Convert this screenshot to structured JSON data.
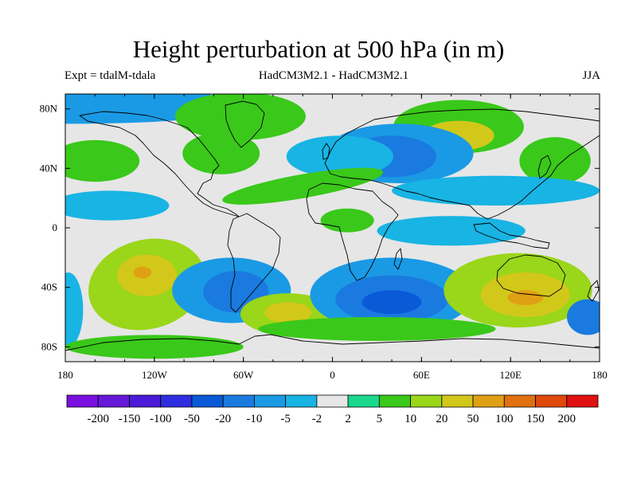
{
  "title": "Height perturbation at 500 hPa (in m)",
  "experiment": "Expt = tdalM-tdala",
  "models": "HadCM3M2.1 - HadCM3M2.1",
  "season": "JJA",
  "axes": {
    "x_ticks": [
      "180",
      "120W",
      "60W",
      "0",
      "60E",
      "120E",
      "180"
    ],
    "y_ticks": [
      "80N",
      "40N",
      "0",
      "40S",
      "80S"
    ]
  },
  "colorbar": {
    "labels": [
      "-200",
      "-150",
      "-100",
      "-50",
      "-20",
      "-10",
      "-5",
      "-2",
      "2",
      "5",
      "10",
      "20",
      "50",
      "100",
      "150",
      "200"
    ],
    "colors": [
      "#7a10e0",
      "#6418d8",
      "#4a1ad8",
      "#2e2ee0",
      "#0a5ad8",
      "#1a7ae0",
      "#1a9ae4",
      "#18b4e4",
      "#e6e6e6",
      "#1ad88c",
      "#3ac81a",
      "#9ad61a",
      "#d2c81a",
      "#e0a014",
      "#e07010",
      "#e0480c",
      "#e01010"
    ]
  },
  "map": {
    "background_color": "#e6e6e6",
    "features": [
      {
        "name": "arctic-band",
        "level": "-5",
        "lon": -175,
        "lat": 82,
        "w": 120,
        "h": 12,
        "rot": 0
      },
      {
        "name": "greenland-high",
        "level": "5",
        "lon": -62,
        "lat": 75,
        "w": 44,
        "h": 16,
        "rot": 0
      },
      {
        "name": "siberia-high",
        "level": "5",
        "lon": 85,
        "lat": 68,
        "w": 44,
        "h": 18,
        "rot": 0
      },
      {
        "name": "siberia-core",
        "level": "20",
        "lon": 85,
        "lat": 62,
        "w": 24,
        "h": 10,
        "rot": 0
      },
      {
        "name": "eurasia-low",
        "level": "-5",
        "lon": 45,
        "lat": 50,
        "w": 50,
        "h": 20,
        "rot": 0
      },
      {
        "name": "eurasia-low-core",
        "level": "-10",
        "lon": 40,
        "lat": 48,
        "w": 30,
        "h": 14,
        "rot": 0
      },
      {
        "name": "europe-low",
        "level": "-2",
        "lon": 5,
        "lat": 48,
        "w": 36,
        "h": 14,
        "rot": 0
      },
      {
        "name": "pacific-nw-high",
        "level": "5",
        "lon": -160,
        "lat": 45,
        "w": 30,
        "h": 14,
        "rot": 0
      },
      {
        "name": "north-america-high",
        "level": "5",
        "lon": -75,
        "lat": 50,
        "w": 26,
        "h": 14,
        "rot": 0
      },
      {
        "name": "east-asia-high",
        "level": "5",
        "lon": 150,
        "lat": 45,
        "w": 24,
        "h": 16,
        "rot": 0
      },
      {
        "name": "asia-belt-low",
        "level": "-2",
        "lon": 110,
        "lat": 25,
        "w": 70,
        "h": 10,
        "rot": 0
      },
      {
        "name": "atlantic-green",
        "level": "5",
        "lon": -20,
        "lat": 28,
        "w": 55,
        "h": 8,
        "rot": -10
      },
      {
        "name": "tropical-pacific",
        "level": "-2",
        "lon": -150,
        "lat": 15,
        "w": 40,
        "h": 10,
        "rot": 0
      },
      {
        "name": "eq-africa",
        "level": "5",
        "lon": 10,
        "lat": 5,
        "w": 18,
        "h": 8,
        "rot": 0
      },
      {
        "name": "indian-eq",
        "level": "-2",
        "lon": 80,
        "lat": -2,
        "w": 50,
        "h": 10,
        "rot": 0
      },
      {
        "name": "south-pacific-high",
        "level": "10",
        "lon": -125,
        "lat": -38,
        "w": 40,
        "h": 30,
        "rot": -15
      },
      {
        "name": "south-pacific-core",
        "level": "20",
        "lon": -125,
        "lat": -32,
        "w": 20,
        "h": 14,
        "rot": 0
      },
      {
        "name": "south-pacific-peak",
        "level": "50",
        "lon": -128,
        "lat": -30,
        "w": 6,
        "h": 4,
        "rot": 0
      },
      {
        "name": "far-east-pacific-low",
        "level": "-2",
        "lon": -178,
        "lat": -55,
        "w": 10,
        "h": 25,
        "rot": 0
      },
      {
        "name": "sa-low",
        "level": "-5",
        "lon": -68,
        "lat": -42,
        "w": 40,
        "h": 22,
        "rot": 0
      },
      {
        "name": "sa-low-core",
        "level": "-10",
        "lon": -65,
        "lat": -43,
        "w": 22,
        "h": 14,
        "rot": 0
      },
      {
        "name": "south-atlantic-high",
        "level": "10",
        "lon": -30,
        "lat": -58,
        "w": 32,
        "h": 14,
        "rot": 0
      },
      {
        "name": "south-atlantic-core",
        "level": "20",
        "lon": -30,
        "lat": -57,
        "w": 16,
        "h": 7,
        "rot": 0
      },
      {
        "name": "southern-africa-low",
        "level": "-5",
        "lon": 40,
        "lat": -45,
        "w": 55,
        "h": 25,
        "rot": 0
      },
      {
        "name": "southern-africa-core",
        "level": "-10",
        "lon": 40,
        "lat": -48,
        "w": 38,
        "h": 16,
        "rot": 0
      },
      {
        "name": "southern-africa-deep",
        "level": "-20",
        "lon": 40,
        "lat": -50,
        "w": 20,
        "h": 8,
        "rot": 0
      },
      {
        "name": "southern-band",
        "level": "5",
        "lon": 30,
        "lat": -68,
        "w": 80,
        "h": 8,
        "rot": 0
      },
      {
        "name": "australia-high",
        "level": "10",
        "lon": 125,
        "lat": -42,
        "w": 50,
        "h": 25,
        "rot": 0
      },
      {
        "name": "australia-core",
        "level": "20",
        "lon": 130,
        "lat": -45,
        "w": 30,
        "h": 15,
        "rot": 0
      },
      {
        "name": "australia-peak",
        "level": "50",
        "lon": 130,
        "lat": -47,
        "w": 12,
        "h": 5,
        "rot": 0
      },
      {
        "name": "southeast-pacific-low",
        "level": "-10",
        "lon": 172,
        "lat": -60,
        "w": 14,
        "h": 12,
        "rot": 0
      },
      {
        "name": "antarctic-band",
        "level": "5",
        "lon": -120,
        "lat": -80,
        "w": 60,
        "h": 8,
        "rot": 0
      }
    ]
  }
}
